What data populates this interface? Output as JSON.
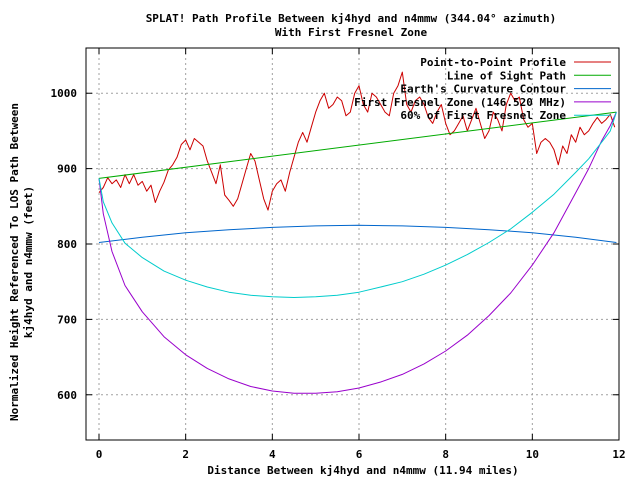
{
  "chart_data": {
    "type": "line",
    "title": "SPLAT! Path Profile Between kj4hyd and n4mmw (344.04° azimuth)",
    "subtitle": "With First Fresnel Zone",
    "xlabel": "Distance Between kj4hyd and n4mmw (11.94 miles)",
    "ylabel_line1": "Normalized Height Referenced To LOS Path Between",
    "ylabel_line2": "kj4hyd and n4mmw (feet)",
    "xlim": [
      -0.3,
      12
    ],
    "ylim": [
      540,
      1060
    ],
    "xticks": [
      0,
      2,
      4,
      6,
      8,
      10,
      12
    ],
    "yticks": [
      600,
      700,
      800,
      900,
      1000
    ],
    "grid": true,
    "legend_position": "top-right",
    "series": [
      {
        "name": "Point-to-Point Profile",
        "color": "#cc0000",
        "x": [
          0,
          0.1,
          0.2,
          0.3,
          0.4,
          0.5,
          0.6,
          0.7,
          0.8,
          0.9,
          1.0,
          1.1,
          1.2,
          1.3,
          1.4,
          1.5,
          1.6,
          1.7,
          1.8,
          1.9,
          2.0,
          2.1,
          2.2,
          2.3,
          2.4,
          2.5,
          2.6,
          2.7,
          2.8,
          2.9,
          3.0,
          3.1,
          3.2,
          3.3,
          3.4,
          3.5,
          3.6,
          3.7,
          3.8,
          3.9,
          4.0,
          4.1,
          4.2,
          4.3,
          4.4,
          4.5,
          4.6,
          4.7,
          4.8,
          4.9,
          5.0,
          5.1,
          5.2,
          5.3,
          5.4,
          5.5,
          5.6,
          5.7,
          5.8,
          5.9,
          6.0,
          6.1,
          6.2,
          6.3,
          6.4,
          6.5,
          6.6,
          6.7,
          6.8,
          6.9,
          7.0,
          7.1,
          7.2,
          7.3,
          7.4,
          7.5,
          7.6,
          7.7,
          7.8,
          7.9,
          8.0,
          8.1,
          8.2,
          8.3,
          8.4,
          8.5,
          8.6,
          8.7,
          8.8,
          8.9,
          9.0,
          9.1,
          9.2,
          9.3,
          9.4,
          9.5,
          9.6,
          9.7,
          9.8,
          9.9,
          10.0,
          10.1,
          10.2,
          10.3,
          10.4,
          10.5,
          10.6,
          10.7,
          10.8,
          10.9,
          11.0,
          11.1,
          11.2,
          11.3,
          11.4,
          11.5,
          11.6,
          11.7,
          11.8,
          11.9
        ],
        "values": [
          868,
          875,
          888,
          880,
          885,
          875,
          892,
          880,
          892,
          878,
          883,
          870,
          878,
          855,
          870,
          882,
          898,
          905,
          915,
          932,
          938,
          925,
          940,
          935,
          930,
          910,
          895,
          880,
          905,
          865,
          858,
          850,
          860,
          880,
          900,
          920,
          910,
          885,
          860,
          845,
          870,
          880,
          885,
          870,
          895,
          915,
          935,
          948,
          935,
          955,
          975,
          990,
          1000,
          980,
          985,
          995,
          990,
          970,
          975,
          1000,
          1010,
          985,
          975,
          1000,
          995,
          985,
          975,
          970,
          1000,
          1010,
          1028,
          985,
          975,
          990,
          995,
          985,
          968,
          960,
          975,
          985,
          960,
          945,
          950,
          960,
          970,
          950,
          965,
          980,
          960,
          940,
          950,
          975,
          965,
          950,
          985,
          1000,
          990,
          995,
          965,
          955,
          960,
          920,
          935,
          940,
          935,
          925,
          905,
          930,
          920,
          945,
          935,
          955,
          945,
          950,
          960,
          968,
          960,
          965,
          972,
          955
        ]
      },
      {
        "name": "Line of Sight Path",
        "color": "#00aa00",
        "x": [
          0,
          11.94
        ],
        "values": [
          887,
          975
        ]
      },
      {
        "name": "Earth's Curvature Contour",
        "color": "#0066cc",
        "x": [
          0,
          1,
          2,
          3,
          4,
          5,
          5.97,
          7,
          8,
          9,
          10,
          11,
          11.94
        ],
        "values": [
          802,
          809,
          815,
          819,
          822,
          824,
          825,
          824,
          822,
          819,
          815,
          809,
          802
        ]
      },
      {
        "name": "First Fresnel Zone (146.520 MHz)",
        "color": "#9900cc",
        "x": [
          0,
          0.1,
          0.3,
          0.6,
          1,
          1.5,
          2,
          2.5,
          3,
          3.5,
          4,
          4.5,
          5,
          5.5,
          6,
          6.5,
          7,
          7.5,
          8,
          8.5,
          9,
          9.5,
          10,
          10.5,
          11,
          11.3,
          11.6,
          11.8,
          11.94
        ],
        "values": [
          887,
          840,
          790,
          745,
          710,
          677,
          653,
          635,
          621,
          611,
          605,
          602,
          602,
          604,
          609,
          617,
          627,
          641,
          658,
          679,
          705,
          735,
          772,
          815,
          868,
          900,
          937,
          957,
          975
        ]
      },
      {
        "name": "60% of First Fresnel Zone",
        "color": "#00cccc",
        "x": [
          0,
          0.1,
          0.3,
          0.6,
          1,
          1.5,
          2,
          2.5,
          3,
          3.5,
          4,
          4.5,
          5,
          5.5,
          6,
          6.5,
          7,
          7.5,
          8,
          8.5,
          9,
          9.5,
          10,
          10.5,
          11,
          11.3,
          11.6,
          11.8,
          11.94
        ],
        "values": [
          887,
          856,
          828,
          801,
          782,
          764,
          752,
          743,
          736,
          732,
          730,
          729,
          730,
          732,
          736,
          743,
          750,
          760,
          772,
          786,
          802,
          820,
          842,
          866,
          895,
          913,
          935,
          950,
          975
        ]
      }
    ]
  }
}
